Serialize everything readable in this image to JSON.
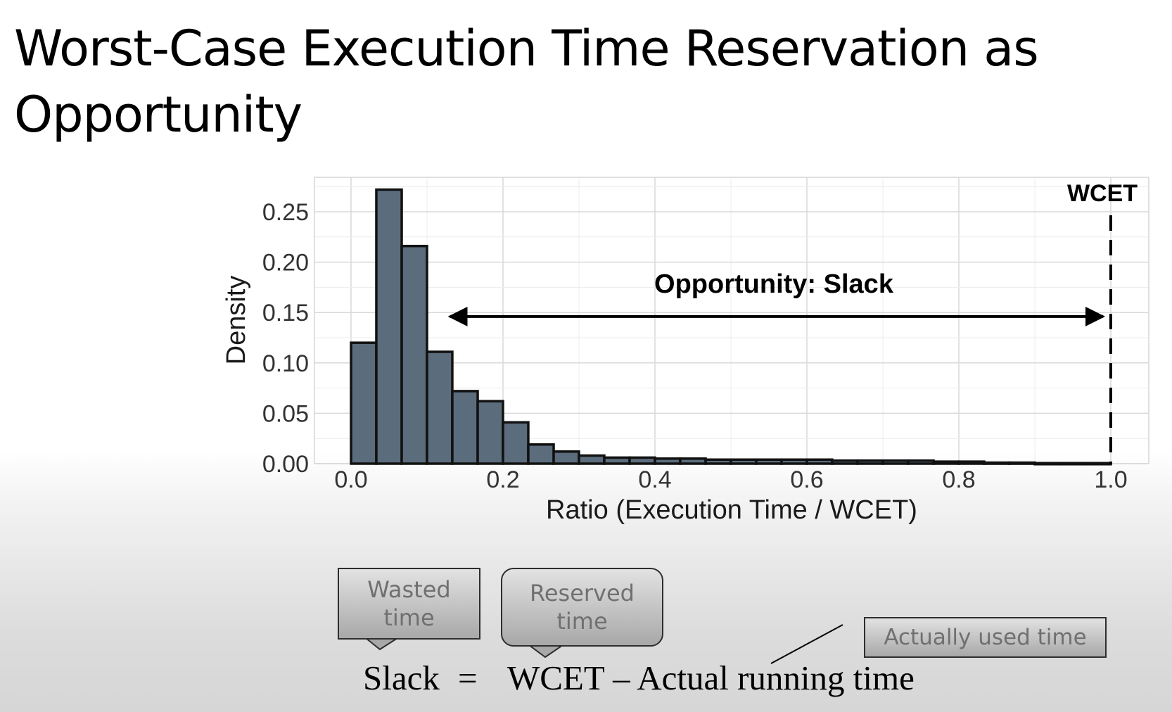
{
  "slide": {
    "title": "Worst-Case Execution Time Reservation as Opportunity"
  },
  "chart_data": {
    "type": "bar",
    "xlabel": "Ratio (Execution Time / WCET)",
    "ylabel": "Density",
    "xlim": [
      -0.02,
      1.02
    ],
    "ylim": [
      0.0,
      0.28
    ],
    "xticks": [
      0.0,
      0.2,
      0.4,
      0.6,
      0.8,
      1.0
    ],
    "xtick_labels": [
      "0.0",
      "0.2",
      "0.4",
      "0.6",
      "0.8",
      "1.0"
    ],
    "yticks": [
      0.0,
      0.05,
      0.1,
      0.15,
      0.2,
      0.25
    ],
    "ytick_labels": [
      "0.00",
      "0.05",
      "0.10",
      "0.15",
      "0.20",
      "0.25"
    ],
    "grid": true,
    "bin_width": 0.0333,
    "bins": [
      {
        "x0": 0.0,
        "x1": 0.0333,
        "value": 0.12
      },
      {
        "x0": 0.0333,
        "x1": 0.0667,
        "value": 0.272
      },
      {
        "x0": 0.0667,
        "x1": 0.1,
        "value": 0.216
      },
      {
        "x0": 0.1,
        "x1": 0.1333,
        "value": 0.111
      },
      {
        "x0": 0.1333,
        "x1": 0.1667,
        "value": 0.072
      },
      {
        "x0": 0.1667,
        "x1": 0.2,
        "value": 0.062
      },
      {
        "x0": 0.2,
        "x1": 0.2333,
        "value": 0.041
      },
      {
        "x0": 0.2333,
        "x1": 0.2667,
        "value": 0.019
      },
      {
        "x0": 0.2667,
        "x1": 0.3,
        "value": 0.012
      },
      {
        "x0": 0.3,
        "x1": 0.3333,
        "value": 0.008
      },
      {
        "x0": 0.3333,
        "x1": 0.3667,
        "value": 0.006
      },
      {
        "x0": 0.3667,
        "x1": 0.4,
        "value": 0.006
      },
      {
        "x0": 0.4,
        "x1": 0.4333,
        "value": 0.005
      },
      {
        "x0": 0.4333,
        "x1": 0.4667,
        "value": 0.005
      },
      {
        "x0": 0.4667,
        "x1": 0.5,
        "value": 0.004
      },
      {
        "x0": 0.5,
        "x1": 0.5333,
        "value": 0.004
      },
      {
        "x0": 0.5333,
        "x1": 0.5667,
        "value": 0.004
      },
      {
        "x0": 0.5667,
        "x1": 0.6,
        "value": 0.004
      },
      {
        "x0": 0.6,
        "x1": 0.6333,
        "value": 0.004
      },
      {
        "x0": 0.6333,
        "x1": 0.6667,
        "value": 0.003
      },
      {
        "x0": 0.6667,
        "x1": 0.7,
        "value": 0.003
      },
      {
        "x0": 0.7,
        "x1": 0.7333,
        "value": 0.003
      },
      {
        "x0": 0.7333,
        "x1": 0.7667,
        "value": 0.003
      },
      {
        "x0": 0.7667,
        "x1": 0.8,
        "value": 0.002
      },
      {
        "x0": 0.8,
        "x1": 0.8333,
        "value": 0.002
      },
      {
        "x0": 0.8333,
        "x1": 0.8667,
        "value": 0.001
      },
      {
        "x0": 0.8667,
        "x1": 0.9,
        "value": 0.001
      },
      {
        "x0": 0.9,
        "x1": 0.9333,
        "value": 0.0005
      },
      {
        "x0": 0.9333,
        "x1": 0.9667,
        "value": 0.0005
      },
      {
        "x0": 0.9667,
        "x1": 1.0,
        "value": 0.0005
      }
    ],
    "bar_color": "#5b6c7c",
    "wcet_line": {
      "x": 1.0,
      "label": "WCET"
    },
    "slack_annotation": {
      "label": "Opportunity: Slack",
      "x_from": 0.13,
      "x_to": 0.99,
      "y": 0.146
    }
  },
  "callouts": {
    "wasted": [
      "Wasted",
      "time"
    ],
    "reserved": [
      "Reserved",
      "time"
    ],
    "used": "Actually used time"
  },
  "formula": {
    "lhs": "Slack",
    "eq": "=",
    "rhs": "WCET – Actual running time"
  }
}
